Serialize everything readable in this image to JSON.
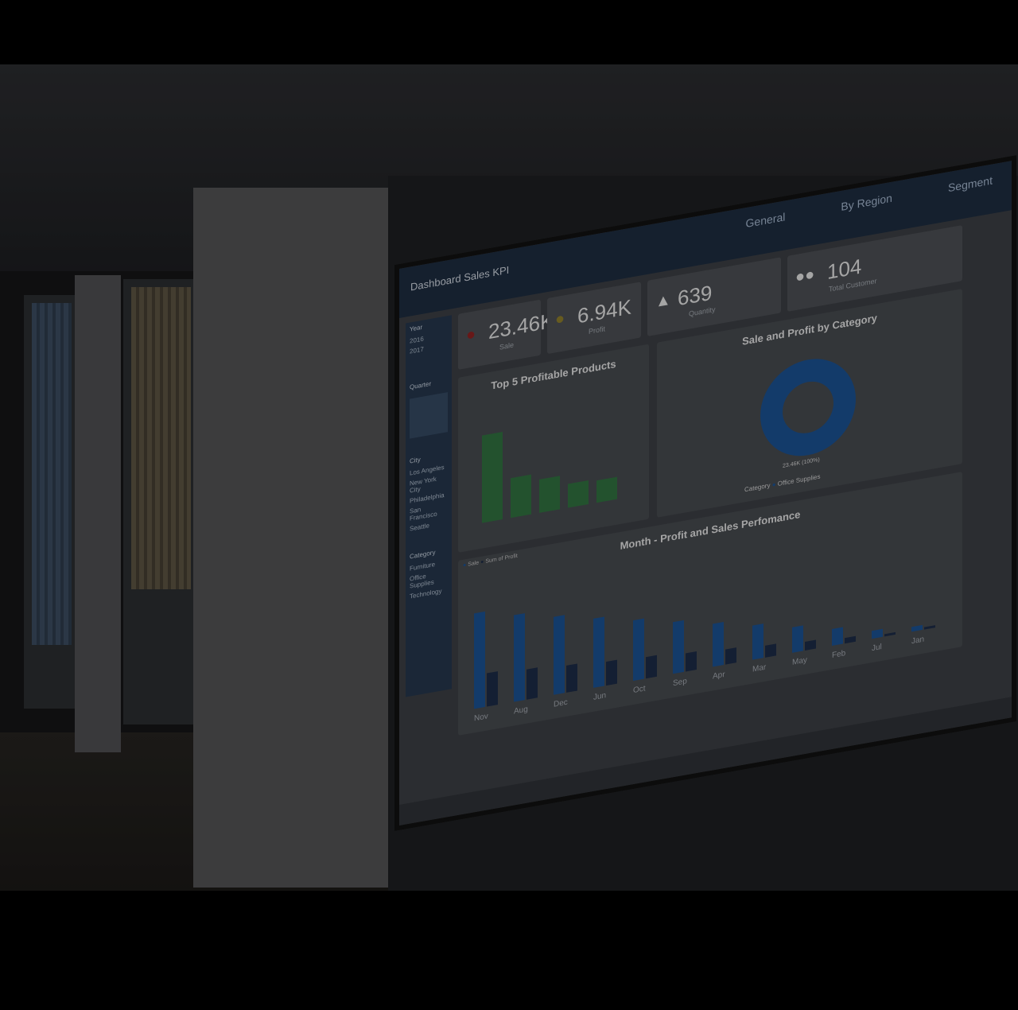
{
  "photo": {
    "description_icons": [
      "door-frame",
      "window-blinds",
      "partition-panel",
      "wall-mounted-display",
      "webcam"
    ]
  },
  "dashboard": {
    "brand": "Dashboard Sales KPI",
    "tabs": [
      "General",
      "By Region",
      "Segment"
    ],
    "slicers": {
      "year": {
        "title": "Year",
        "options": [
          "2016",
          "2017"
        ]
      },
      "quarter": {
        "title": "Quarter"
      },
      "city": {
        "title": "City",
        "options": [
          "Los Angeles",
          "New York City",
          "Philadelphia",
          "San Francisco",
          "Seattle"
        ]
      },
      "category": {
        "title": "Category",
        "options": [
          "Furniture",
          "Office Supplies",
          "Technology"
        ]
      }
    },
    "kpis": [
      {
        "value": "23.46K",
        "label": "Sale",
        "icon": "money-bag-icon"
      },
      {
        "value": "6.94K",
        "label": "Profit",
        "icon": "coins-icon"
      },
      {
        "value": "639",
        "label": "Quantity",
        "icon": "boxes-icon"
      },
      {
        "value": "104",
        "label": "Total Customer",
        "icon": "users-icon"
      }
    ],
    "top_products": {
      "title": "Top 5 Profitable Products"
    },
    "category_chart": {
      "title": "Sale and Profit by Category",
      "center_label": "23.46K (100%)",
      "legend_title": "Category",
      "legend_item": "Office Supplies"
    },
    "month_chart": {
      "title": "Month - Profit and Sales Perfomance",
      "legend": [
        "Sale",
        "Sum of Profit"
      ],
      "months": [
        "Nov",
        "Aug",
        "Dec",
        "Jun",
        "Oct",
        "Sep",
        "Apr",
        "Mar",
        "May",
        "Feb",
        "Jul",
        "Jan"
      ]
    }
  }
}
